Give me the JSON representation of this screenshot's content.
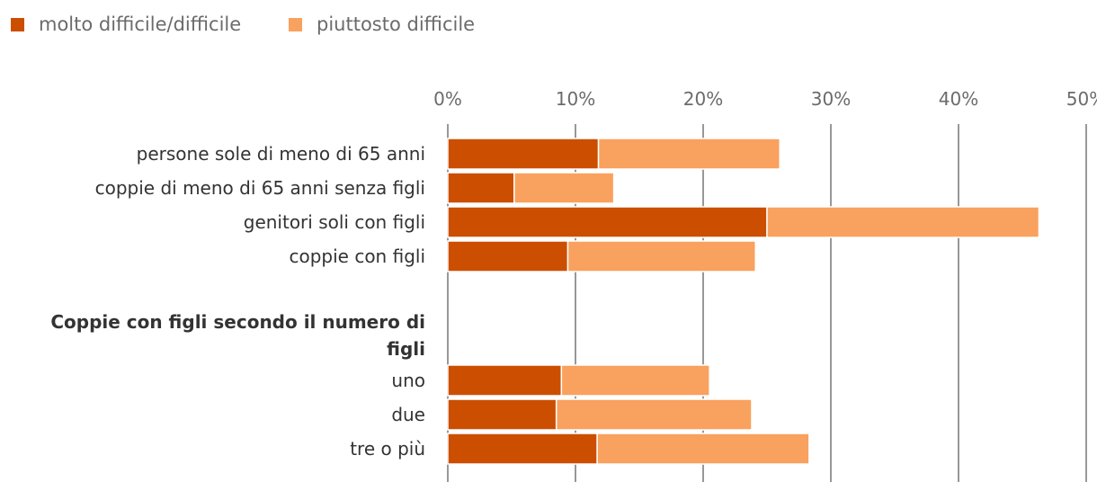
{
  "chart_data": {
    "type": "bar",
    "orientation": "horizontal",
    "stacked": true,
    "xlim": [
      0,
      50
    ],
    "ticks": [
      "0%",
      "10%",
      "20%",
      "30%",
      "40%",
      "50%"
    ],
    "tick_values": [
      0,
      10,
      20,
      30,
      40,
      50
    ],
    "grid": true,
    "legend_position": "top-left",
    "series": [
      {
        "name": "molto difficile/difficile",
        "color": "#cc4e00"
      },
      {
        "name": "piuttosto difficile",
        "color": "#f9a15e"
      }
    ],
    "rows": [
      {
        "label": "persone sole di meno di 65 anni",
        "values": [
          11.8,
          14.2
        ]
      },
      {
        "label": "coppie di meno di 65 anni senza figli",
        "values": [
          5.2,
          7.8
        ]
      },
      {
        "label": "genitori soli con figli",
        "values": [
          25.0,
          21.3
        ]
      },
      {
        "label": "coppie con figli",
        "values": [
          9.4,
          14.7
        ]
      }
    ],
    "group": {
      "title_lines": [
        "Coppie con figli secondo il numero di",
        "figli"
      ],
      "rows": [
        {
          "label": "uno",
          "values": [
            8.9,
            11.6
          ]
        },
        {
          "label": "due",
          "values": [
            8.5,
            15.3
          ]
        },
        {
          "label": "tre o più",
          "values": [
            11.7,
            16.6
          ]
        }
      ]
    }
  }
}
